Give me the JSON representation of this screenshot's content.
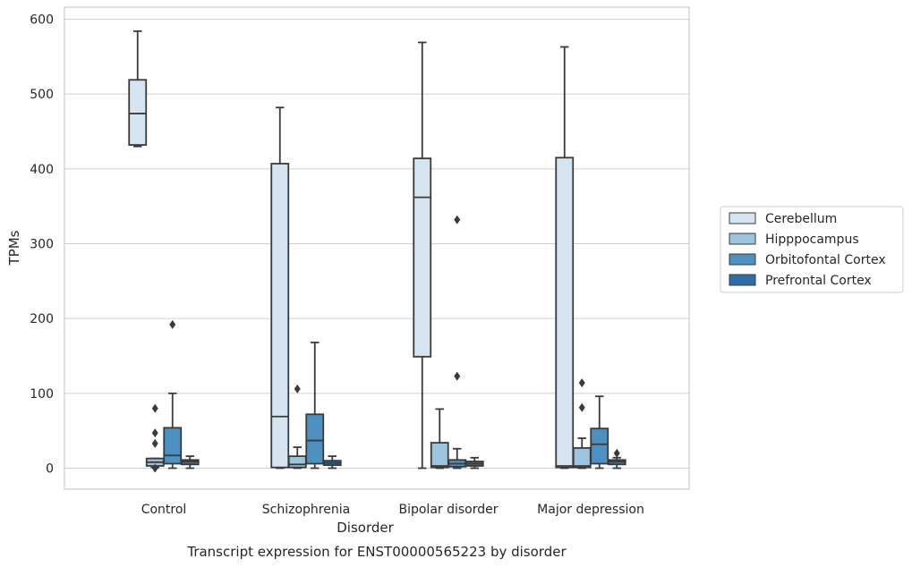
{
  "chart_data": {
    "type": "box",
    "xlabel": "Disorder",
    "ylabel": "TPMs",
    "caption": "Transcript expression for ENST00000565223 by disorder",
    "categories": [
      "Control",
      "Schizophrenia",
      "Bipolar disorder",
      "Major depression"
    ],
    "ylim": [
      -28,
      616
    ],
    "yticks": [
      0,
      100,
      200,
      300,
      400,
      500,
      600
    ],
    "grid": "horizontal",
    "legend_position": "right",
    "series": [
      {
        "name": "Cerebellum",
        "color": "#d6e4f2",
        "boxes": [
          {
            "whislo": 430,
            "q1": 432,
            "med": 474,
            "q3": 519,
            "whishi": 584,
            "fliers": []
          },
          {
            "whislo": 0,
            "q1": 1,
            "med": 69,
            "q3": 407,
            "whishi": 482,
            "fliers": []
          },
          {
            "whislo": 0,
            "q1": 149,
            "med": 362,
            "q3": 414,
            "whishi": 569,
            "fliers": []
          },
          {
            "whislo": 0,
            "q1": 1,
            "med": 3,
            "q3": 415,
            "whishi": 563,
            "fliers": []
          }
        ]
      },
      {
        "name": "Hipppocampus",
        "color": "#9cc4de",
        "boxes": [
          {
            "whislo": 1,
            "q1": 3,
            "med": 8,
            "q3": 13,
            "whishi": 13,
            "fliers": [
              0,
              33,
              47,
              80
            ]
          },
          {
            "whislo": 0,
            "q1": 1,
            "med": 5,
            "q3": 16,
            "whishi": 28,
            "fliers": [
              106
            ]
          },
          {
            "whislo": 0,
            "q1": 1,
            "med": 3,
            "q3": 34,
            "whishi": 79,
            "fliers": []
          },
          {
            "whislo": 0,
            "q1": 1,
            "med": 3,
            "q3": 27,
            "whishi": 40,
            "fliers": [
              81,
              114
            ]
          }
        ]
      },
      {
        "name": "Orbitofontal Cortex",
        "color": "#4e90bf",
        "boxes": [
          {
            "whislo": 0,
            "q1": 6,
            "med": 17,
            "q3": 54,
            "whishi": 100,
            "fliers": [
              192
            ]
          },
          {
            "whislo": 0,
            "q1": 6,
            "med": 37,
            "q3": 72,
            "whishi": 168,
            "fliers": []
          },
          {
            "whislo": 0,
            "q1": 2,
            "med": 6,
            "q3": 11,
            "whishi": 26,
            "fliers": [
              123,
              332
            ]
          },
          {
            "whislo": 0,
            "q1": 6,
            "med": 32,
            "q3": 53,
            "whishi": 96,
            "fliers": []
          }
        ]
      },
      {
        "name": "Prefrontal Cortex",
        "color": "#2e6da6",
        "boxes": [
          {
            "whislo": 0,
            "q1": 5,
            "med": 9,
            "q3": 11,
            "whishi": 16,
            "fliers": []
          },
          {
            "whislo": 0,
            "q1": 4,
            "med": 7,
            "q3": 10,
            "whishi": 16,
            "fliers": []
          },
          {
            "whislo": 0,
            "q1": 3,
            "med": 6,
            "q3": 9,
            "whishi": 14,
            "fliers": []
          },
          {
            "whislo": 0,
            "q1": 5,
            "med": 9,
            "q3": 11,
            "whishi": 14,
            "fliers": [
              20
            ]
          }
        ]
      }
    ]
  }
}
